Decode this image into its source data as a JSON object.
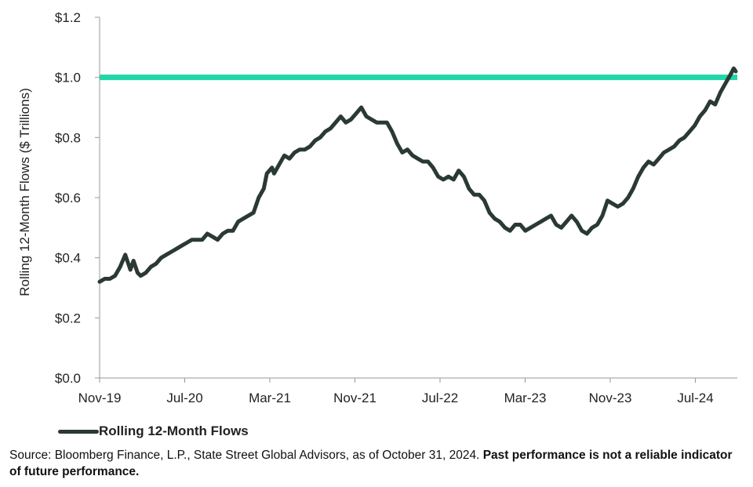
{
  "chart_data": {
    "type": "line",
    "title": "",
    "xlabel": "",
    "ylabel": "Rolling 12-Month Flows ($ Trillions)",
    "ylim": [
      0,
      1.2
    ],
    "yticks": [
      "$0.0",
      "$0.2",
      "$0.4",
      "$0.6",
      "$0.8",
      "$1.0",
      "$1.2"
    ],
    "xtick_labels": [
      "Nov-19",
      "Jul-20",
      "Mar-21",
      "Nov-21",
      "Jul-22",
      "Mar-23",
      "Nov-23",
      "Jul-24"
    ],
    "reference_line": {
      "value": 1.0,
      "color": "#1fd6a6"
    },
    "series": [
      {
        "name": "Rolling 12-Month Flows",
        "color": "#2a3a33",
        "points": [
          [
            0.0,
            0.32
          ],
          [
            0.5,
            0.33
          ],
          [
            1.0,
            0.33
          ],
          [
            1.5,
            0.34
          ],
          [
            2.0,
            0.37
          ],
          [
            2.5,
            0.41
          ],
          [
            3.0,
            0.36
          ],
          [
            3.3,
            0.39
          ],
          [
            3.7,
            0.35
          ],
          [
            4.0,
            0.34
          ],
          [
            4.5,
            0.35
          ],
          [
            5.0,
            0.37
          ],
          [
            5.5,
            0.38
          ],
          [
            6.0,
            0.4
          ],
          [
            6.5,
            0.41
          ],
          [
            7.0,
            0.42
          ],
          [
            7.5,
            0.43
          ],
          [
            8.0,
            0.44
          ],
          [
            8.5,
            0.45
          ],
          [
            9.0,
            0.46
          ],
          [
            9.5,
            0.46
          ],
          [
            10.0,
            0.46
          ],
          [
            10.5,
            0.48
          ],
          [
            11.0,
            0.47
          ],
          [
            11.5,
            0.46
          ],
          [
            12.0,
            0.48
          ],
          [
            12.5,
            0.49
          ],
          [
            13.0,
            0.49
          ],
          [
            13.5,
            0.52
          ],
          [
            14.0,
            0.53
          ],
          [
            15.0,
            0.55
          ],
          [
            15.5,
            0.6
          ],
          [
            16.0,
            0.63
          ],
          [
            16.3,
            0.68
          ],
          [
            16.8,
            0.7
          ],
          [
            17.0,
            0.68
          ],
          [
            17.5,
            0.71
          ],
          [
            18.0,
            0.74
          ],
          [
            18.5,
            0.73
          ],
          [
            19.0,
            0.75
          ],
          [
            19.5,
            0.76
          ],
          [
            20.0,
            0.76
          ],
          [
            20.5,
            0.77
          ],
          [
            21.0,
            0.79
          ],
          [
            21.5,
            0.8
          ],
          [
            22.0,
            0.82
          ],
          [
            22.5,
            0.83
          ],
          [
            23.0,
            0.85
          ],
          [
            23.5,
            0.87
          ],
          [
            24.0,
            0.85
          ],
          [
            24.5,
            0.86
          ],
          [
            25.0,
            0.88
          ],
          [
            25.5,
            0.9
          ],
          [
            26.0,
            0.87
          ],
          [
            26.5,
            0.86
          ],
          [
            27.0,
            0.85
          ],
          [
            27.5,
            0.85
          ],
          [
            28.0,
            0.85
          ],
          [
            28.5,
            0.82
          ],
          [
            29.0,
            0.78
          ],
          [
            29.5,
            0.75
          ],
          [
            30.0,
            0.76
          ],
          [
            30.5,
            0.74
          ],
          [
            31.0,
            0.73
          ],
          [
            31.5,
            0.72
          ],
          [
            32.0,
            0.72
          ],
          [
            32.5,
            0.7
          ],
          [
            33.0,
            0.67
          ],
          [
            33.5,
            0.66
          ],
          [
            34.0,
            0.67
          ],
          [
            34.5,
            0.66
          ],
          [
            35.0,
            0.69
          ],
          [
            35.5,
            0.67
          ],
          [
            36.0,
            0.63
          ],
          [
            36.5,
            0.61
          ],
          [
            37.0,
            0.61
          ],
          [
            37.5,
            0.59
          ],
          [
            38.0,
            0.55
          ],
          [
            38.5,
            0.53
          ],
          [
            39.0,
            0.52
          ],
          [
            39.5,
            0.5
          ],
          [
            40.0,
            0.49
          ],
          [
            40.5,
            0.51
          ],
          [
            41.0,
            0.51
          ],
          [
            41.5,
            0.49
          ],
          [
            42.0,
            0.5
          ],
          [
            42.5,
            0.51
          ],
          [
            43.0,
            0.52
          ],
          [
            43.5,
            0.53
          ],
          [
            44.0,
            0.54
          ],
          [
            44.5,
            0.51
          ],
          [
            45.0,
            0.5
          ],
          [
            45.5,
            0.52
          ],
          [
            46.0,
            0.54
          ],
          [
            46.5,
            0.52
          ],
          [
            47.0,
            0.49
          ],
          [
            47.5,
            0.48
          ],
          [
            48.0,
            0.5
          ],
          [
            48.5,
            0.51
          ],
          [
            49.0,
            0.54
          ],
          [
            49.5,
            0.59
          ],
          [
            50.0,
            0.58
          ],
          [
            50.5,
            0.57
          ],
          [
            51.0,
            0.58
          ],
          [
            51.5,
            0.6
          ],
          [
            52.0,
            0.63
          ],
          [
            52.5,
            0.67
          ],
          [
            53.0,
            0.7
          ],
          [
            53.5,
            0.72
          ],
          [
            54.0,
            0.71
          ],
          [
            54.5,
            0.73
          ],
          [
            55.0,
            0.75
          ],
          [
            55.5,
            0.76
          ],
          [
            56.0,
            0.77
          ],
          [
            56.5,
            0.79
          ],
          [
            57.0,
            0.8
          ],
          [
            57.5,
            0.82
          ],
          [
            58.0,
            0.84
          ],
          [
            58.5,
            0.87
          ],
          [
            59.0,
            0.89
          ],
          [
            59.5,
            0.92
          ],
          [
            60.0,
            0.91
          ],
          [
            60.5,
            0.95
          ],
          [
            61.0,
            0.98
          ],
          [
            61.5,
            1.01
          ],
          [
            61.8,
            1.03
          ],
          [
            62.0,
            1.02
          ]
        ]
      }
    ]
  },
  "legend": {
    "label": "Rolling 12-Month Flows"
  },
  "source": {
    "text": "Source: Bloomberg Finance, L.P., State Street Global Advisors, as of October 31, 2024. ",
    "bold": "Past performance is not a reliable indicator of future performance."
  }
}
